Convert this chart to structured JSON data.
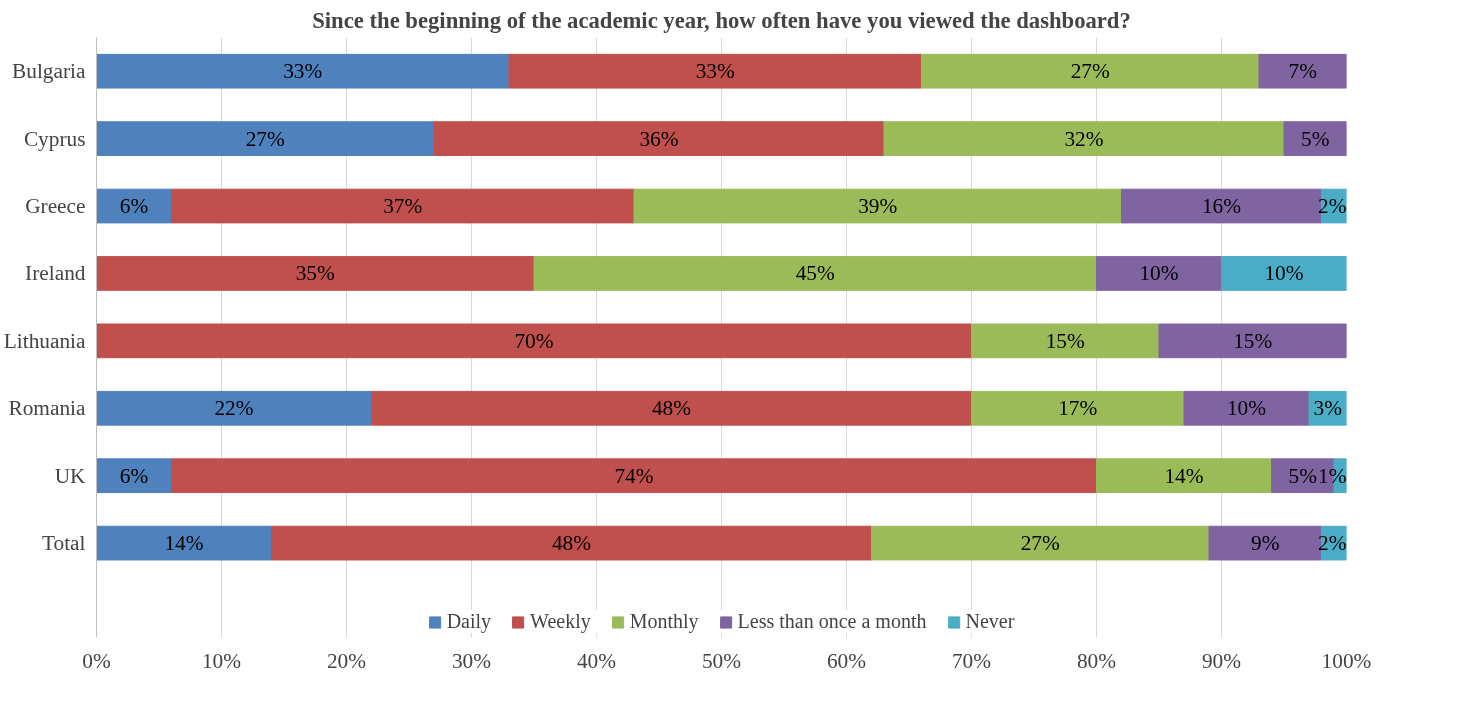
{
  "chart_data": {
    "type": "bar",
    "orientation": "horizontal",
    "stacked": true,
    "title": "Since the beginning of the academic year, how often have you viewed the dashboard?",
    "categories": [
      "Bulgaria",
      "Cyprus",
      "Greece",
      "Ireland",
      "Lithuania",
      "Romania",
      "UK",
      "Total"
    ],
    "series": [
      {
        "name": "Daily",
        "color": "#4f81bd",
        "values": [
          33,
          27,
          6,
          null,
          null,
          22,
          6,
          14
        ],
        "value_labels": [
          "33%",
          "27%",
          "6%",
          null,
          null,
          "22%",
          "6%",
          "14%"
        ]
      },
      {
        "name": "Weekly",
        "color": "#c0504d",
        "values": [
          33,
          36,
          37,
          35,
          70,
          48,
          74,
          48
        ],
        "value_labels": [
          "33%",
          "36%",
          "37%",
          "35%",
          "70%",
          "48%",
          "74%",
          "48%"
        ]
      },
      {
        "name": "Monthly",
        "color": "#9bbb59",
        "values": [
          27,
          32,
          39,
          45,
          15,
          17,
          14,
          27
        ],
        "value_labels": [
          "27%",
          "32%",
          "39%",
          "45%",
          "15%",
          "17%",
          "14%",
          "27%"
        ]
      },
      {
        "name": "Less than once a month",
        "color": "#8064a2",
        "values": [
          7,
          5,
          16,
          10,
          15,
          10,
          5,
          9
        ],
        "value_labels": [
          "7%",
          "5%",
          "16%",
          "10%",
          "15%",
          "10%",
          "5%",
          "9%"
        ]
      },
      {
        "name": "Never",
        "color": "#4bacc6",
        "values": [
          null,
          null,
          2,
          10,
          null,
          3,
          1,
          2
        ],
        "value_labels": [
          null,
          null,
          "2%",
          "10%",
          null,
          "3%",
          "1%",
          "2%"
        ]
      }
    ],
    "xlim": [
      0,
      100
    ],
    "xticks": [
      {
        "value": 0,
        "label": "0%"
      },
      {
        "value": 10,
        "label": "10%"
      },
      {
        "value": 20,
        "label": "20%"
      },
      {
        "value": 30,
        "label": "30%"
      },
      {
        "value": 40,
        "label": "40%"
      },
      {
        "value": 50,
        "label": "50%"
      },
      {
        "value": 60,
        "label": "60%"
      },
      {
        "value": 70,
        "label": "70%"
      },
      {
        "value": 80,
        "label": "80%"
      },
      {
        "value": 90,
        "label": "90%"
      },
      {
        "value": 100,
        "label": "100%"
      }
    ],
    "grid": "x",
    "legend": "bottom"
  }
}
